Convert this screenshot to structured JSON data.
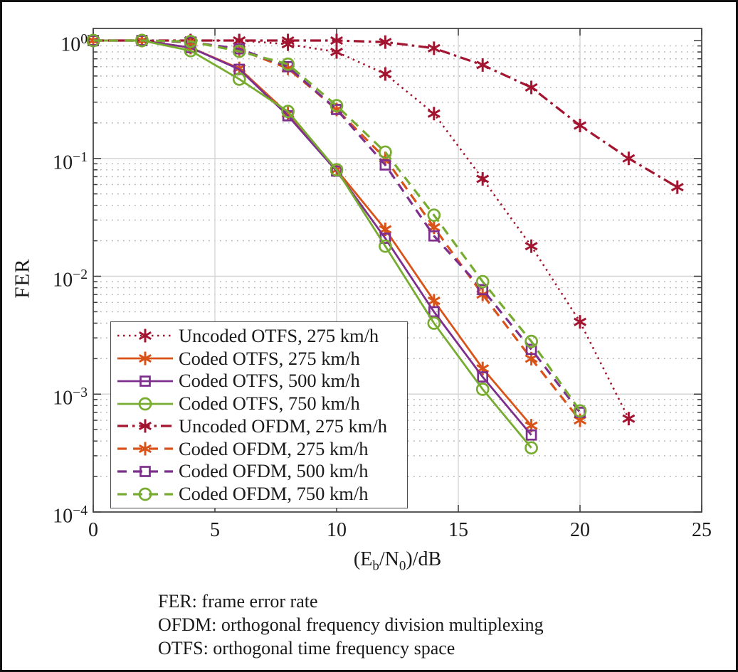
{
  "figure": {
    "background": "#ffffff",
    "frame_color": "#101010",
    "axis_color": "#3d3d3d",
    "grid_major_color": "#d6d6d6",
    "grid_minor_color": "#a8a8a8",
    "text_color": "#1a1a1a"
  },
  "chart_data": {
    "type": "line",
    "title": "",
    "xlabel": "(Eb/N0)/dB",
    "xlabel_parts": {
      "p1": "(E",
      "sub1": "b",
      "p2": "/N",
      "sub2": "0",
      "p3": ")/dB"
    },
    "ylabel": "FER",
    "x_range": [
      0,
      25
    ],
    "y_scale": "log",
    "y_range": [
      0.0001,
      1.26
    ],
    "x_ticks": [
      0,
      5,
      10,
      15,
      20,
      25
    ],
    "y_tick_exponents": [
      0,
      -1,
      -2,
      -3,
      -4
    ],
    "grid": {
      "major": true,
      "minor_log_dotted": true
    },
    "legend_position": "inside lower-left",
    "series": [
      {
        "name": "Uncoded OTFS, 275 km/h",
        "color": "#A2142F",
        "line": "dotted",
        "marker": "asterisk",
        "x": [
          0,
          2,
          4,
          6,
          8,
          10,
          12,
          14,
          16,
          18,
          20,
          22
        ],
        "y": [
          1.0,
          1.0,
          1.0,
          1.0,
          0.93,
          0.8,
          0.52,
          0.24,
          0.067,
          0.018,
          0.0041,
          0.00062
        ]
      },
      {
        "name": "Coded OTFS, 275 km/h",
        "color": "#D95319",
        "line": "solid",
        "marker": "asterisk",
        "x": [
          0,
          2,
          4,
          6,
          8,
          10,
          12,
          14,
          16,
          18
        ],
        "y": [
          1.0,
          1.0,
          0.87,
          0.58,
          0.24,
          0.08,
          0.025,
          0.0062,
          0.00165,
          0.00054
        ]
      },
      {
        "name": "Coded OTFS, 500 km/h",
        "color": "#7E2F8E",
        "line": "solid",
        "marker": "square",
        "x": [
          0,
          2,
          4,
          6,
          8,
          10,
          12,
          14,
          16,
          18
        ],
        "y": [
          1.0,
          1.0,
          0.87,
          0.57,
          0.23,
          0.078,
          0.021,
          0.005,
          0.0014,
          0.00045
        ]
      },
      {
        "name": "Coded OTFS, 750 km/h",
        "color": "#77AC30",
        "line": "solid",
        "marker": "circle",
        "x": [
          0,
          2,
          4,
          6,
          8,
          10,
          12,
          14,
          16,
          18
        ],
        "y": [
          1.0,
          1.0,
          0.82,
          0.47,
          0.25,
          0.08,
          0.018,
          0.004,
          0.0011,
          0.00035
        ]
      },
      {
        "name": "Uncoded OFDM, 275 km/h",
        "color": "#A2142F",
        "line": "dashdot",
        "marker": "asterisk",
        "x": [
          0,
          2,
          4,
          6,
          8,
          10,
          12,
          14,
          16,
          18,
          20,
          22,
          24
        ],
        "y": [
          1.0,
          1.0,
          1.0,
          1.0,
          1.0,
          1.0,
          0.97,
          0.86,
          0.62,
          0.4,
          0.19,
          0.1,
          0.057
        ]
      },
      {
        "name": "Coded OFDM, 275 km/h",
        "color": "#D95319",
        "line": "dashed",
        "marker": "asterisk",
        "x": [
          0,
          2,
          4,
          6,
          8,
          10,
          12,
          14,
          16,
          18,
          20
        ],
        "y": [
          1.0,
          1.0,
          0.97,
          0.84,
          0.58,
          0.26,
          0.1,
          0.026,
          0.007,
          0.002,
          0.0006
        ]
      },
      {
        "name": "Coded OFDM, 500 km/h",
        "color": "#7E2F8E",
        "line": "dashed",
        "marker": "square",
        "x": [
          0,
          2,
          4,
          6,
          8,
          10,
          12,
          14,
          16,
          18,
          20
        ],
        "y": [
          1.0,
          1.0,
          0.97,
          0.85,
          0.6,
          0.26,
          0.088,
          0.022,
          0.0077,
          0.0024,
          0.0007
        ]
      },
      {
        "name": "Coded OFDM, 750 km/h",
        "color": "#77AC30",
        "line": "dashed",
        "marker": "circle",
        "x": [
          0,
          2,
          4,
          6,
          8,
          10,
          12,
          14,
          16,
          18,
          20
        ],
        "y": [
          1.0,
          1.0,
          0.98,
          0.81,
          0.63,
          0.28,
          0.113,
          0.033,
          0.009,
          0.0028,
          0.00072
        ]
      }
    ]
  },
  "footer": {
    "lines": [
      "FER: frame error rate",
      "OFDM: orthogonal frequency division multiplexing",
      "OTFS: orthogonal time frequency space"
    ]
  }
}
